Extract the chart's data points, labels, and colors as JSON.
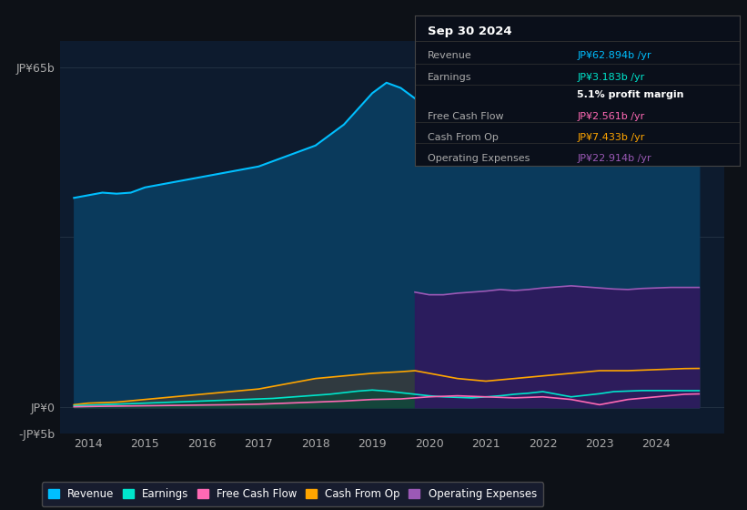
{
  "background_color": "#0d1117",
  "plot_bg_color": "#0d1b2e",
  "ylabel_top": "JP¥65b",
  "ylabel_zero": "JP¥0",
  "ylabel_neg": "-JP¥5b",
  "ylim": [
    -5,
    70
  ],
  "xlim_start": 2013.5,
  "xlim_end": 2025.2,
  "xticks": [
    2014,
    2015,
    2016,
    2017,
    2018,
    2019,
    2020,
    2021,
    2022,
    2023,
    2024
  ],
  "revenue_color": "#00bfff",
  "earnings_color": "#00e5cc",
  "free_cash_flow_color": "#ff69b4",
  "cash_from_op_color": "#ffa500",
  "operating_expenses_color": "#9b59b6",
  "revenue_fill_color": "#0a3a5c",
  "operating_expenses_fill_color": "#2d1b5e",
  "legend_items": [
    "Revenue",
    "Earnings",
    "Free Cash Flow",
    "Cash From Op",
    "Operating Expenses"
  ],
  "revenue_x": [
    2013.75,
    2014.0,
    2014.25,
    2014.5,
    2014.75,
    2015.0,
    2015.25,
    2015.5,
    2015.75,
    2016.0,
    2016.25,
    2016.5,
    2016.75,
    2017.0,
    2017.25,
    2017.5,
    2017.75,
    2018.0,
    2018.25,
    2018.5,
    2018.75,
    2019.0,
    2019.25,
    2019.5,
    2019.75,
    2020.0,
    2020.25,
    2020.5,
    2020.75,
    2021.0,
    2021.25,
    2021.5,
    2021.75,
    2022.0,
    2022.25,
    2022.5,
    2022.75,
    2023.0,
    2023.25,
    2023.5,
    2023.75,
    2024.0,
    2024.25,
    2024.5,
    2024.75
  ],
  "revenue_y": [
    40,
    40.5,
    41,
    40.8,
    41,
    42,
    42.5,
    43,
    43.5,
    44,
    44.5,
    45,
    45.5,
    46,
    47,
    48,
    49,
    50,
    52,
    54,
    57,
    60,
    62,
    61,
    59,
    57,
    55,
    54,
    53,
    53.5,
    54,
    54.5,
    55,
    56,
    55,
    54,
    55,
    56,
    57,
    58,
    60,
    61,
    62,
    63,
    63
  ],
  "earnings_x": [
    2013.75,
    2014.0,
    2014.25,
    2014.5,
    2014.75,
    2015.0,
    2015.25,
    2015.5,
    2015.75,
    2016.0,
    2016.25,
    2016.5,
    2016.75,
    2017.0,
    2017.25,
    2017.5,
    2017.75,
    2018.0,
    2018.25,
    2018.5,
    2018.75,
    2019.0,
    2019.25,
    2019.5,
    2019.75,
    2020.0,
    2020.25,
    2020.5,
    2020.75,
    2021.0,
    2021.25,
    2021.5,
    2021.75,
    2022.0,
    2022.25,
    2022.5,
    2022.75,
    2023.0,
    2023.25,
    2023.5,
    2023.75,
    2024.0,
    2024.25,
    2024.5,
    2024.75
  ],
  "earnings_y": [
    0.3,
    0.4,
    0.5,
    0.6,
    0.7,
    0.8,
    0.9,
    1.0,
    1.1,
    1.2,
    1.3,
    1.4,
    1.5,
    1.6,
    1.7,
    1.9,
    2.1,
    2.3,
    2.5,
    2.8,
    3.1,
    3.3,
    3.1,
    2.8,
    2.5,
    2.2,
    2.0,
    1.9,
    1.8,
    2.0,
    2.2,
    2.5,
    2.7,
    3.0,
    2.5,
    2.0,
    2.3,
    2.6,
    3.0,
    3.1,
    3.2,
    3.2,
    3.2,
    3.18,
    3.18
  ],
  "free_cash_flow_x": [
    2013.75,
    2014.25,
    2015.0,
    2015.75,
    2016.5,
    2017.0,
    2017.5,
    2018.0,
    2018.5,
    2019.0,
    2019.5,
    2019.75,
    2020.0,
    2020.5,
    2021.0,
    2021.5,
    2022.0,
    2022.5,
    2022.75,
    2023.0,
    2023.5,
    2024.0,
    2024.5,
    2024.75
  ],
  "free_cash_flow_y": [
    0.1,
    0.2,
    0.3,
    0.4,
    0.5,
    0.6,
    0.8,
    1.0,
    1.2,
    1.5,
    1.6,
    1.8,
    2.0,
    2.2,
    2.0,
    1.8,
    2.0,
    1.5,
    1.0,
    0.5,
    1.5,
    2.0,
    2.5,
    2.56
  ],
  "cash_from_op_x": [
    2013.75,
    2014.0,
    2014.5,
    2015.0,
    2015.5,
    2016.0,
    2016.5,
    2017.0,
    2017.5,
    2018.0,
    2018.5,
    2019.0,
    2019.5,
    2019.75,
    2020.0,
    2020.5,
    2021.0,
    2021.5,
    2022.0,
    2022.5,
    2023.0,
    2023.5,
    2024.0,
    2024.5,
    2024.75
  ],
  "cash_from_op_y": [
    0.5,
    0.8,
    1.0,
    1.5,
    2.0,
    2.5,
    3.0,
    3.5,
    4.5,
    5.5,
    6.0,
    6.5,
    6.8,
    7.0,
    6.5,
    5.5,
    5.0,
    5.5,
    6.0,
    6.5,
    7.0,
    7.0,
    7.2,
    7.4,
    7.43
  ],
  "op_exp_x": [
    2019.75,
    2020.0,
    2020.25,
    2020.5,
    2020.75,
    2021.0,
    2021.25,
    2021.5,
    2021.75,
    2022.0,
    2022.25,
    2022.5,
    2022.75,
    2023.0,
    2023.25,
    2023.5,
    2023.75,
    2024.0,
    2024.25,
    2024.5,
    2024.75
  ],
  "op_exp_y": [
    22,
    21.5,
    21.5,
    21.8,
    22.0,
    22.2,
    22.5,
    22.3,
    22.5,
    22.8,
    23.0,
    23.2,
    23.0,
    22.8,
    22.6,
    22.5,
    22.7,
    22.8,
    22.9,
    22.9,
    22.9
  ],
  "tooltip_bg": "#0a0f1a",
  "tooltip_title": "Sep 30 2024",
  "tooltip_rows": [
    {
      "label": "Revenue",
      "value": "JP¥62.894b /yr",
      "color": "#00bfff"
    },
    {
      "label": "Earnings",
      "value": "JP¥3.183b /yr",
      "color": "#00e5cc"
    },
    {
      "label": "",
      "value": "5.1% profit margin",
      "color": "#ffffff"
    },
    {
      "label": "Free Cash Flow",
      "value": "JP¥2.561b /yr",
      "color": "#ff69b4"
    },
    {
      "label": "Cash From Op",
      "value": "JP¥7.433b /yr",
      "color": "#ffa500"
    },
    {
      "label": "Operating Expenses",
      "value": "JP¥22.914b /yr",
      "color": "#9b59b6"
    }
  ]
}
